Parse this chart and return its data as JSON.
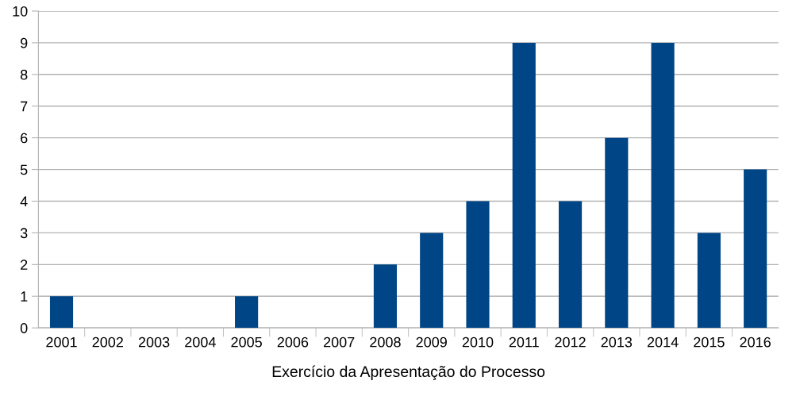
{
  "chart_data": {
    "type": "bar",
    "categories": [
      "2001",
      "2002",
      "2003",
      "2004",
      "2005",
      "2006",
      "2007",
      "2008",
      "2009",
      "2010",
      "2011",
      "2012",
      "2013",
      "2014",
      "2015",
      "2016"
    ],
    "values": [
      1,
      0,
      0,
      0,
      1,
      0,
      0,
      2,
      3,
      4,
      9,
      4,
      6,
      9,
      3,
      5
    ],
    "color": "#004586",
    "xlabel": "Exercício da Apresentação do Processo",
    "ylim": [
      0,
      10
    ],
    "yticks": [
      0,
      1,
      2,
      3,
      4,
      5,
      6,
      7,
      8,
      9,
      10
    ],
    "grid": "y"
  }
}
